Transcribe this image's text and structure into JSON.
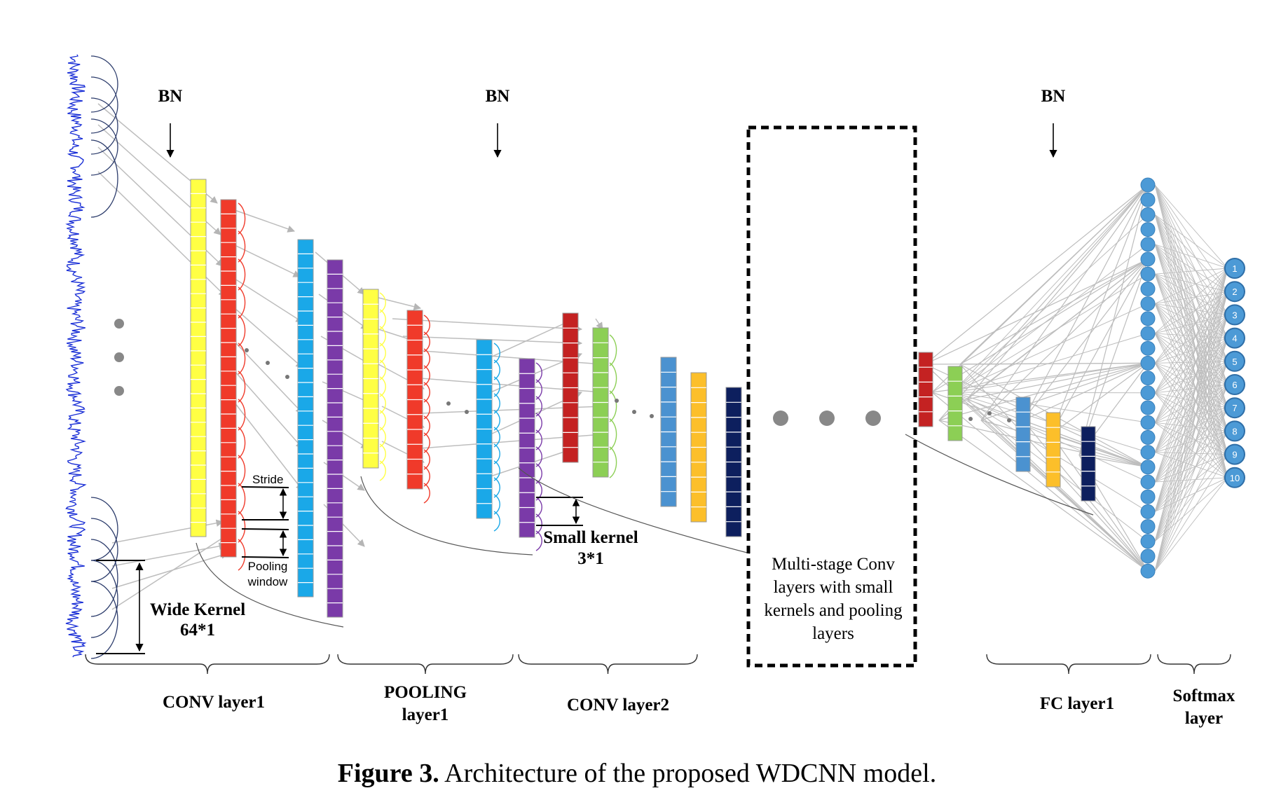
{
  "labels": {
    "bn": [
      "BN",
      "BN",
      "BN"
    ],
    "stride": "Stride",
    "pooling_window": [
      "Pooling",
      "window"
    ],
    "wide_kernel": [
      "Wide Kernel",
      "64*1"
    ],
    "small_kernel": [
      "Small kernel",
      "3*1"
    ],
    "multistage": [
      "Multi-stage Conv",
      "layers with small",
      "kernels and pooling",
      "layers"
    ],
    "conv_layer1": "CONV layer1",
    "pooling_layer1": [
      "POOLING",
      "layer1"
    ],
    "conv_layer2": "CONV layer2",
    "fc_layer1": "FC layer1",
    "softmax": [
      "Softmax",
      "layer"
    ]
  },
  "output_nodes": [
    "1",
    "2",
    "3",
    "4",
    "5",
    "6",
    "7",
    "8",
    "9",
    "10"
  ],
  "caption": {
    "prefix": "Figure 3.",
    "text": "Architecture of the proposed WDCNN model."
  },
  "colors": {
    "signal": "#1a2fd6",
    "yellow": "#ffff44",
    "red": "#f03a2a",
    "cyan": "#1aa8e8",
    "purple": "#7a3aa8",
    "dark_red": "#c42222",
    "green": "#8ccf55",
    "steel_blue": "#4b92d0",
    "orange": "#fcbf2a",
    "navy": "#0d1f5e",
    "node": "#4c9ad6",
    "edge": "#bdbdbd"
  }
}
